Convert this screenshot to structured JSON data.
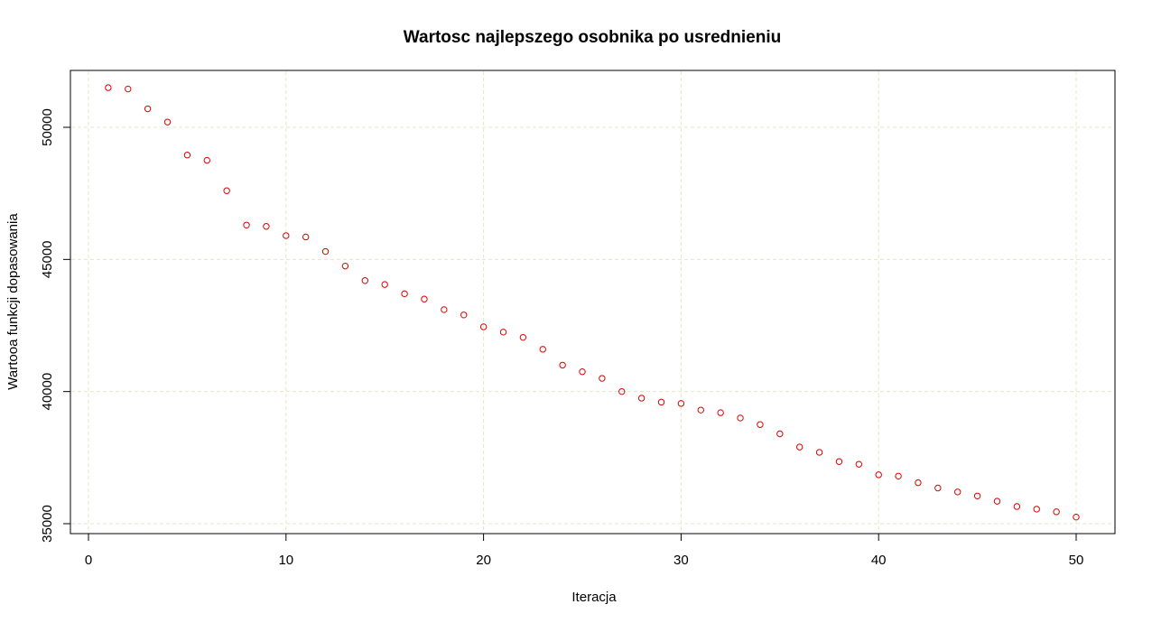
{
  "chart_data": {
    "type": "scatter",
    "title": "Wartosc najlepszego osobnika po usrednieniu",
    "xlabel": "Iteracja",
    "ylabel": "Wartooa funkcji dopasowania",
    "xlim": [
      0,
      50
    ],
    "ylim": [
      35000,
      52000
    ],
    "x_ticks": [
      0,
      10,
      20,
      30,
      40,
      50
    ],
    "y_ticks": [
      35000,
      40000,
      45000,
      50000
    ],
    "x_tick_labels": [
      "0",
      "10",
      "20",
      "30",
      "40",
      "50"
    ],
    "y_tick_labels": [
      "35000",
      "40000",
      "45000",
      "50000"
    ],
    "grid": true,
    "grid_color": "#e8e4c8",
    "point_color": "#e00000",
    "marker": "open-circle",
    "series": [
      {
        "x": [
          1,
          2,
          3,
          4,
          5,
          6,
          7,
          8,
          9,
          10,
          11,
          12,
          13,
          14,
          15,
          16,
          17,
          18,
          19,
          20,
          21,
          22,
          23,
          24,
          25,
          26,
          27,
          28,
          29,
          30,
          31,
          32,
          33,
          34,
          35,
          36,
          37,
          38,
          39,
          40,
          41,
          42,
          43,
          44,
          45,
          46,
          47,
          48,
          49,
          50
        ],
        "values": [
          51500,
          51450,
          50700,
          50200,
          48950,
          48750,
          47600,
          46300,
          46250,
          45900,
          45850,
          45300,
          44750,
          44200,
          44050,
          43700,
          43500,
          43100,
          42900,
          42450,
          42250,
          42050,
          41600,
          41000,
          40750,
          40500,
          40000,
          39750,
          39600,
          39550,
          39300,
          39200,
          39000,
          38750,
          38400,
          37900,
          37700,
          37350,
          37250,
          36850,
          36800,
          36550,
          36350,
          36200,
          36050,
          35850,
          35650,
          35550,
          35450,
          35250
        ]
      }
    ]
  }
}
